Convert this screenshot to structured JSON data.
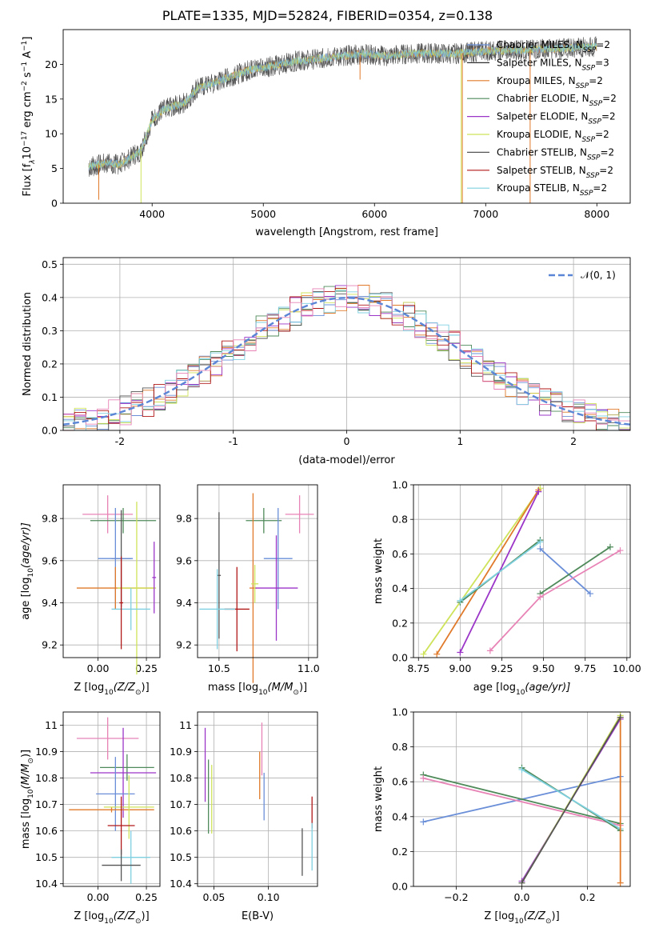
{
  "title": "PLATE=1335, MJD=52824, FIBERID=0354, z=0.138",
  "colors": {
    "chabrier_miles": "#6a8fd8",
    "salpeter_miles": "#2f2f2f",
    "kroupa_miles": "#e07a2a",
    "chabrier_elodie": "#4f8a5a",
    "salpeter_elodie": "#9b35c8",
    "kroupa_elodie": "#cfe35a",
    "chabrier_stelib": "#555555",
    "salpeter_stelib": "#b01818",
    "kroupa_stelib": "#7fd0e0",
    "pink": "#e883b6",
    "normal_curve": "#5b86d6",
    "grid": "#b0b0b0"
  },
  "chart_data": [
    {
      "id": "spectrum",
      "type": "line",
      "xlabel": "wavelength [Angstrom, rest frame]",
      "ylabel": "Flux [f",
      "ylabel_sub": "λ",
      "ylabel_mid": "10",
      "ylabel_sup": "−17",
      "ylabel_rest": " erg cm",
      "ylabel_sup2": "−2",
      "ylabel_rest2": " s",
      "ylabel_sup3": "−1",
      "ylabel_rest3": " A",
      "ylabel_sup4": "−1",
      "ylabel_end": "]",
      "xlim": [
        3200,
        8300
      ],
      "ylim": [
        0,
        25
      ],
      "xticks": [
        4000,
        5000,
        6000,
        7000,
        8000
      ],
      "yticks": [
        0,
        5,
        10,
        15,
        20
      ],
      "legend": [
        {
          "text": "Chabrier MILES, N",
          "sub": "SSP",
          "tail": "=2",
          "color": "#6a8fd8"
        },
        {
          "text": "Salpeter MILES, N",
          "sub": "SSP",
          "tail": "=3",
          "color": "#2f2f2f"
        },
        {
          "text": "Kroupa MILES, N",
          "sub": "SSP",
          "tail": "=2",
          "color": "#e07a2a"
        },
        {
          "text": "Chabrier ELODIE, N",
          "sub": "SSP",
          "tail": "=2",
          "color": "#4f8a5a"
        },
        {
          "text": "Salpeter ELODIE, N",
          "sub": "SSP",
          "tail": "=2",
          "color": "#9b35c8"
        },
        {
          "text": "Kroupa ELODIE, N",
          "sub": "SSP",
          "tail": "=2",
          "color": "#cfe35a"
        },
        {
          "text": "Chabrier STELIB, N",
          "sub": "SSP",
          "tail": "=2",
          "color": "#555555"
        },
        {
          "text": "Salpeter STELIB, N",
          "sub": "SSP",
          "tail": "=2",
          "color": "#b01818"
        },
        {
          "text": "Kroupa STELIB, N",
          "sub": "SSP",
          "tail": "=2",
          "color": "#7fd0e0"
        }
      ],
      "continuum": {
        "x": [
          3430,
          3500,
          3600,
          3700,
          3800,
          3900,
          4000,
          4100,
          4200,
          4300,
          4400,
          4500,
          4700,
          4900,
          5100,
          5300,
          5500,
          5700,
          5900,
          6100,
          6300,
          6500,
          6700,
          6900,
          7100,
          7300,
          7500,
          7700,
          7900,
          8000
        ],
        "y": [
          5.2,
          5.5,
          5.8,
          5.6,
          6.5,
          7.5,
          12.0,
          13.5,
          14.0,
          14.5,
          16.5,
          17.0,
          18.2,
          19.3,
          19.8,
          20.5,
          20.8,
          21.2,
          21.5,
          21.2,
          21.5,
          21.6,
          21.5,
          21.8,
          22.0,
          22.0,
          22.2,
          22.3,
          22.5,
          22.5
        ]
      },
      "dropouts": [
        {
          "x": 3520,
          "y": 0.5,
          "color": "#e07a2a"
        },
        {
          "x": 3900,
          "y": 0.0,
          "color": "#cfe35a"
        },
        {
          "x": 5870,
          "y": 17.8,
          "color": "#e07a2a"
        },
        {
          "x": 6780,
          "y": 0.0,
          "color": "#cfe35a"
        },
        {
          "x": 6790,
          "y": 0.0,
          "color": "#e07a2a"
        },
        {
          "x": 7400,
          "y": 0.0,
          "color": "#e07a2a"
        }
      ]
    },
    {
      "id": "residuals",
      "type": "step",
      "xlabel": "(data-model)/error",
      "ylabel": "Normed distribution",
      "xlim": [
        -2.5,
        2.5
      ],
      "ylim": [
        0,
        0.52
      ],
      "xticks": [
        -2,
        -1,
        0,
        1,
        2
      ],
      "yticks": [
        0.0,
        0.1,
        0.2,
        0.3,
        0.4,
        0.5
      ],
      "legend_label": "𝒩(0, 1)",
      "normal_sigma": 1,
      "bin_width": 0.1,
      "bin_start": -2.5
    },
    {
      "id": "z_age",
      "type": "errorbar",
      "xlabel": "Z [log",
      "xlabel_sub": "10",
      "xlabel_tail": "(Z/Z",
      "xlabel_sub2": "⊙",
      "xlabel_end": ")]",
      "ylabel": "age  [log",
      "ylabel_sub": "10",
      "ylabel_tail": "(age/yr)]",
      "xlim": [
        -0.18,
        0.32
      ],
      "ylim": [
        9.14,
        9.96
      ],
      "xticks": [
        0.0,
        0.25
      ],
      "xtick_labels": [
        "0.00",
        "0.25"
      ],
      "yticks": [
        9.2,
        9.4,
        9.6,
        9.8
      ],
      "points": [
        {
          "x": 0.05,
          "y": 9.82,
          "ex": 0.13,
          "ey": 0.09,
          "c": "#e883b6"
        },
        {
          "x": 0.13,
          "y": 9.79,
          "ex": 0.17,
          "ey": 0.06,
          "c": "#4f8a5a"
        },
        {
          "x": 0.12,
          "y": 9.61,
          "ex": 0.05,
          "ey": 0.23,
          "c": "#555555"
        },
        {
          "x": 0.09,
          "y": 9.61,
          "ex": 0.09,
          "ey": 0.24,
          "c": "#6a8fd8"
        },
        {
          "x": 0.09,
          "y": 9.47,
          "ex": 0.2,
          "ey": 0.1,
          "c": "#e07a2a"
        },
        {
          "x": 0.2,
          "y": 9.47,
          "ex": 0.1,
          "ey": 0.41,
          "c": "#cfe35a"
        },
        {
          "x": 0.29,
          "y": 9.52,
          "ex": 0.01,
          "ey": 0.17,
          "c": "#9b35c8"
        },
        {
          "x": 0.17,
          "y": 9.37,
          "ex": 0.1,
          "ey": 0.1,
          "c": "#7fd0e0"
        },
        {
          "x": 0.12,
          "y": 9.4,
          "ex": 0.01,
          "ey": 0.22,
          "c": "#b01818"
        }
      ]
    },
    {
      "id": "mass_age",
      "type": "errorbar",
      "xlabel": "mass [log",
      "xlabel_sub": "10",
      "xlabel_tail": "(M/M",
      "xlabel_sub2": "⊙",
      "xlabel_end": ")]",
      "xlim": [
        10.38,
        11.05
      ],
      "ylim": [
        9.14,
        9.96
      ],
      "xticks": [
        10.5,
        11.0
      ],
      "xtick_labels": [
        "10.5",
        "11.0"
      ],
      "yticks": [
        9.2,
        9.4,
        9.6,
        9.8
      ],
      "points": [
        {
          "x": 10.95,
          "y": 9.82,
          "ex": 0.08,
          "ey": 0.09,
          "c": "#e883b6"
        },
        {
          "x": 10.75,
          "y": 9.79,
          "ex": 0.1,
          "ey": 0.06,
          "c": "#4f8a5a"
        },
        {
          "x": 10.83,
          "y": 9.61,
          "ex": 0.08,
          "ey": 0.24,
          "c": "#6a8fd8"
        },
        {
          "x": 10.69,
          "y": 9.47,
          "ex": 0.02,
          "ey": 0.45,
          "c": "#e07a2a"
        },
        {
          "x": 10.82,
          "y": 9.47,
          "ex": 0.12,
          "ey": 0.25,
          "c": "#9b35c8"
        },
        {
          "x": 10.7,
          "y": 9.49,
          "ex": 0.02,
          "ey": 0.09,
          "c": "#cfe35a"
        },
        {
          "x": 10.5,
          "y": 9.53,
          "ex": 0.01,
          "ey": 0.3,
          "c": "#555555"
        },
        {
          "x": 10.6,
          "y": 9.37,
          "ex": 0.07,
          "ey": 0.2,
          "c": "#b01818"
        },
        {
          "x": 10.49,
          "y": 9.37,
          "ex": 0.1,
          "ey": 0.19,
          "c": "#7fd0e0"
        }
      ]
    },
    {
      "id": "age_weight",
      "type": "line",
      "xlabel": "age  [log",
      "xlabel_sub": "10",
      "xlabel_tail": "(age/yr)]",
      "ylabel": "mass weight",
      "xlim": [
        8.72,
        10.02
      ],
      "ylim": [
        0,
        1
      ],
      "xticks": [
        8.75,
        9.0,
        9.25,
        9.5,
        9.75,
        10.0
      ],
      "xtick_labels": [
        "8.75",
        "9.00",
        "9.25",
        "9.50",
        "9.75",
        "10.00"
      ],
      "yticks": [
        0.0,
        0.2,
        0.4,
        0.6,
        0.8,
        1.0
      ],
      "ytick_labels": [
        "0.0",
        "0.2",
        "0.4",
        "0.6",
        "0.8",
        "1.0"
      ],
      "series": [
        {
          "x": [
            8.78,
            9.48
          ],
          "y": [
            0.02,
            0.98
          ],
          "c": "#cfe35a"
        },
        {
          "x": [
            8.86,
            9.47
          ],
          "y": [
            0.02,
            0.97
          ],
          "c": "#e07a2a"
        },
        {
          "x": [
            9.0,
            9.47
          ],
          "y": [
            0.03,
            0.96
          ],
          "c": "#9b35c8"
        },
        {
          "x": [
            9.0,
            9.48
          ],
          "y": [
            0.32,
            0.68
          ],
          "c": "#4f8a5a"
        },
        {
          "x": [
            9.0,
            9.48
          ],
          "y": [
            0.33,
            0.67
          ],
          "c": "#7fd0e0"
        },
        {
          "x": [
            9.48,
            9.78
          ],
          "y": [
            0.63,
            0.37
          ],
          "c": "#6a8fd8"
        },
        {
          "x": [
            9.48,
            9.9
          ],
          "y": [
            0.37,
            0.64
          ],
          "c": "#4f8a5a"
        },
        {
          "x": [
            9.18,
            9.48,
            9.96
          ],
          "y": [
            0.04,
            0.35,
            0.62
          ],
          "c": "#e883b6"
        }
      ]
    },
    {
      "id": "z_mass",
      "type": "errorbar",
      "xlabel": "Z [log",
      "xlabel_sub": "10",
      "xlabel_tail": "(Z/Z",
      "xlabel_sub2": "⊙",
      "xlabel_end": ")]",
      "ylabel": "mass [log",
      "ylabel_sub": "10",
      "ylabel_tail": "(M/M",
      "ylabel_sub2": "⊙",
      "ylabel_end": ")]",
      "xlim": [
        -0.18,
        0.32
      ],
      "ylim": [
        10.39,
        11.05
      ],
      "xticks": [
        0.0,
        0.25
      ],
      "xtick_labels": [
        "0.00",
        "0.25"
      ],
      "yticks": [
        10.4,
        10.5,
        10.6,
        10.7,
        10.8,
        10.9,
        11.0
      ],
      "points": [
        {
          "x": 0.05,
          "y": 10.95,
          "ex": 0.16,
          "ey": 0.08,
          "c": "#e883b6"
        },
        {
          "x": 0.15,
          "y": 10.84,
          "ex": 0.14,
          "ey": 0.05,
          "c": "#4f8a5a"
        },
        {
          "x": 0.13,
          "y": 10.82,
          "ex": 0.17,
          "ey": 0.17,
          "c": "#9b35c8"
        },
        {
          "x": 0.09,
          "y": 10.74,
          "ex": 0.1,
          "ey": 0.14,
          "c": "#6a8fd8"
        },
        {
          "x": 0.07,
          "y": 10.68,
          "ex": 0.22,
          "ey": 0.01,
          "c": "#e07a2a"
        },
        {
          "x": 0.16,
          "y": 10.69,
          "ex": 0.13,
          "ey": 0.12,
          "c": "#cfe35a"
        },
        {
          "x": 0.12,
          "y": 10.62,
          "ex": 0.07,
          "ey": 0.11,
          "c": "#b01818"
        },
        {
          "x": 0.17,
          "y": 10.5,
          "ex": 0.1,
          "ey": 0.1,
          "c": "#7fd0e0"
        },
        {
          "x": 0.12,
          "y": 10.47,
          "ex": 0.1,
          "ey": 0.06,
          "c": "#555555"
        }
      ]
    },
    {
      "id": "ebv_mass",
      "type": "errorbar",
      "xlabel": "E(B-V)",
      "xlim": [
        0.035,
        0.145
      ],
      "ylim": [
        10.39,
        11.05
      ],
      "xticks": [
        0.05,
        0.1
      ],
      "xtick_labels": [
        "0.05",
        "0.10"
      ],
      "yticks": [
        10.4,
        10.5,
        10.6,
        10.7,
        10.8,
        10.9,
        11.0
      ],
      "points": [
        {
          "x": 0.042,
          "y": 10.85,
          "ey": 0.14,
          "c": "#9b35c8"
        },
        {
          "x": 0.045,
          "y": 10.73,
          "ey": 0.14,
          "c": "#4f8a5a"
        },
        {
          "x": 0.048,
          "y": 10.72,
          "ey": 0.13,
          "c": "#cfe35a"
        },
        {
          "x": 0.092,
          "y": 10.81,
          "ey": 0.09,
          "c": "#e07a2a"
        },
        {
          "x": 0.094,
          "y": 10.91,
          "ey": 0.1,
          "c": "#e883b6"
        },
        {
          "x": 0.096,
          "y": 10.73,
          "ey": 0.09,
          "c": "#6a8fd8"
        },
        {
          "x": 0.131,
          "y": 10.52,
          "ey": 0.09,
          "c": "#555555"
        },
        {
          "x": 0.14,
          "y": 10.67,
          "ey": 0.06,
          "c": "#b01818"
        },
        {
          "x": 0.14,
          "y": 10.54,
          "ey": 0.09,
          "c": "#7fd0e0"
        }
      ]
    },
    {
      "id": "z_weight",
      "type": "line",
      "xlabel": "Z [log",
      "xlabel_sub": "10",
      "xlabel_tail": "(Z/Z",
      "xlabel_sub2": "⊙",
      "xlabel_end": ")]",
      "ylabel": "mass weight",
      "xlim": [
        -0.33,
        0.33
      ],
      "ylim": [
        0,
        1
      ],
      "xticks": [
        -0.2,
        0.0,
        0.2
      ],
      "xtick_labels": [
        "−0.2",
        "0.0",
        "0.2"
      ],
      "yticks": [
        0.0,
        0.2,
        0.4,
        0.6,
        0.8,
        1.0
      ],
      "ytick_labels": [
        "0.0",
        "0.2",
        "0.4",
        "0.6",
        "0.8",
        "1.0"
      ],
      "series": [
        {
          "x": [
            -0.3,
            0.3
          ],
          "y": [
            0.37,
            0.63
          ],
          "c": "#6a8fd8"
        },
        {
          "x": [
            -0.3,
            0.3
          ],
          "y": [
            0.64,
            0.36
          ],
          "c": "#4f8a5a"
        },
        {
          "x": [
            -0.3,
            0.3
          ],
          "y": [
            0.62,
            0.35
          ],
          "c": "#e883b6"
        },
        {
          "x": [
            0.0,
            0.3
          ],
          "y": [
            0.68,
            0.32
          ],
          "c": "#4f8a5a"
        },
        {
          "x": [
            0.0,
            0.3
          ],
          "y": [
            0.67,
            0.33
          ],
          "c": "#7fd0e0"
        },
        {
          "x": [
            0.0,
            0.3
          ],
          "y": [
            0.03,
            0.96
          ],
          "c": "#9b35c8"
        },
        {
          "x": [
            0.0,
            0.3
          ],
          "y": [
            0.02,
            0.98
          ],
          "c": "#cfe35a"
        },
        {
          "x": [
            0.3,
            0.3
          ],
          "y": [
            0.02,
            0.97
          ],
          "c": "#e07a2a"
        },
        {
          "x": [
            0.0,
            0.3
          ],
          "y": [
            0.02,
            0.97
          ],
          "c": "#555555"
        }
      ]
    }
  ]
}
